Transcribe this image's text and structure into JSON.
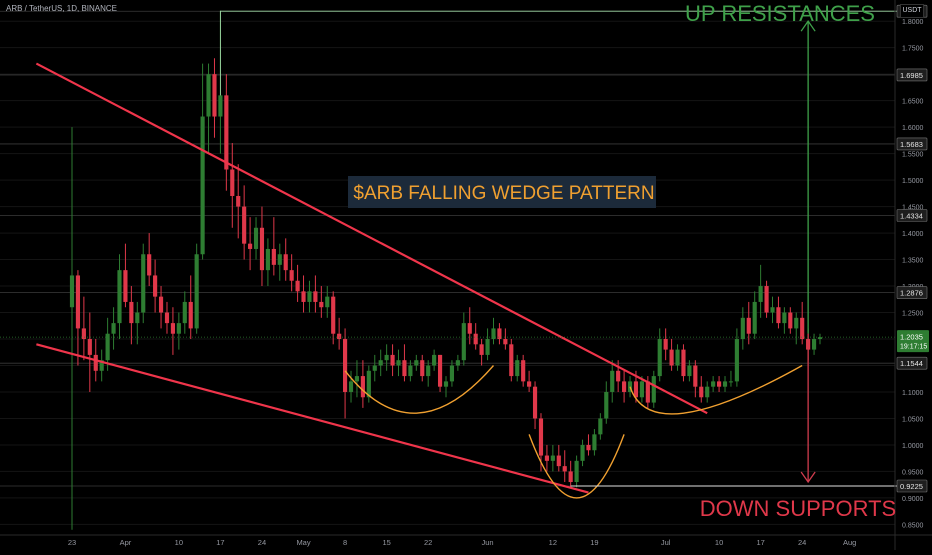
{
  "header": {
    "symbol_line": "ARB / TetherUS, 1D, BINANCE",
    "quote_currency": "USDT"
  },
  "colors": {
    "background": "#000000",
    "up_candle": "#2e7d32",
    "down_candle": "#e0384a",
    "trendline": "#f0354b",
    "arc": "#f0a030",
    "up_arrow": "#3fa14a",
    "down_arrow": "#d03c4e",
    "up_text": "#3fa14a",
    "down_text": "#e0384a",
    "title_text": "#f0a030",
    "title_bg": "#1c2a3a",
    "current_price_bg": "#2e7d32"
  },
  "annotations": {
    "title": "$ARB FALLING WEDGE PATTERN",
    "up_label": "UP RESISTANCES",
    "down_label": "DOWN SUPPORTS"
  },
  "chart_data": {
    "type": "candlestick",
    "y_axis": {
      "min": 0.83,
      "max": 1.84,
      "ticks": [
        "0.8500",
        "0.9000",
        "0.9500",
        "1.0000",
        "1.0500",
        "1.1000",
        "1.1500",
        "1.2000",
        "1.2500",
        "1.3000",
        "1.3500",
        "1.4000",
        "1.4500",
        "1.5000",
        "1.5500",
        "1.6000",
        "1.6500",
        "1.7000",
        "1.7500",
        "1.8000"
      ]
    },
    "x_axis": {
      "ticks": [
        {
          "label": "23",
          "x": "2023-03-23"
        },
        {
          "label": "Apr",
          "x": "2023-04-01"
        },
        {
          "label": "10",
          "x": "2023-04-10"
        },
        {
          "label": "17",
          "x": "2023-04-17"
        },
        {
          "label": "24",
          "x": "2023-04-24"
        },
        {
          "label": "May",
          "x": "2023-05-01"
        },
        {
          "label": "8",
          "x": "2023-05-08"
        },
        {
          "label": "15",
          "x": "2023-05-15"
        },
        {
          "label": "22",
          "x": "2023-05-22"
        },
        {
          "label": "Jun",
          "x": "2023-06-01"
        },
        {
          "label": "12",
          "x": "2023-06-12"
        },
        {
          "label": "19",
          "x": "2023-06-19"
        },
        {
          "label": "Jul",
          "x": "2023-07-01"
        },
        {
          "label": "10",
          "x": "2023-07-10"
        },
        {
          "label": "17",
          "x": "2023-07-17"
        },
        {
          "label": "24",
          "x": "2023-07-24"
        },
        {
          "label": "Aug",
          "x": "2023-08-01"
        }
      ]
    },
    "price_levels": [
      {
        "label": "1.8188",
        "value": 1.8188
      },
      {
        "label": "1.6985",
        "value": 1.6985
      },
      {
        "label": "1.5683",
        "value": 1.5683
      },
      {
        "label": "1.4334",
        "value": 1.4334
      },
      {
        "label": "1.2876",
        "value": 1.2876
      },
      {
        "label": "1.1544",
        "value": 1.1544
      },
      {
        "label": "0.9225",
        "value": 0.9225
      }
    ],
    "current_price": {
      "value": 1.2035,
      "label": "1.2035",
      "countdown": "19:17:15"
    },
    "candles": [
      [
        "2023-03-23",
        1.26,
        1.6,
        0.84,
        1.32
      ],
      [
        "2023-03-24",
        1.32,
        1.33,
        1.15,
        1.22
      ],
      [
        "2023-03-25",
        1.22,
        1.28,
        1.16,
        1.2
      ],
      [
        "2023-03-26",
        1.2,
        1.25,
        1.1,
        1.17
      ],
      [
        "2023-03-27",
        1.17,
        1.2,
        1.12,
        1.14
      ],
      [
        "2023-03-28",
        1.14,
        1.18,
        1.12,
        1.16
      ],
      [
        "2023-03-29",
        1.16,
        1.24,
        1.14,
        1.21
      ],
      [
        "2023-03-30",
        1.21,
        1.26,
        1.18,
        1.23
      ],
      [
        "2023-03-31",
        1.23,
        1.36,
        1.2,
        1.33
      ],
      [
        "2023-04-01",
        1.33,
        1.38,
        1.26,
        1.27
      ],
      [
        "2023-04-02",
        1.27,
        1.3,
        1.19,
        1.23
      ],
      [
        "2023-04-03",
        1.23,
        1.27,
        1.19,
        1.25
      ],
      [
        "2023-04-04",
        1.25,
        1.38,
        1.23,
        1.36
      ],
      [
        "2023-04-05",
        1.36,
        1.4,
        1.3,
        1.32
      ],
      [
        "2023-04-06",
        1.32,
        1.35,
        1.25,
        1.28
      ],
      [
        "2023-04-07",
        1.28,
        1.3,
        1.22,
        1.25
      ],
      [
        "2023-04-08",
        1.25,
        1.27,
        1.21,
        1.23
      ],
      [
        "2023-04-09",
        1.23,
        1.26,
        1.17,
        1.21
      ],
      [
        "2023-04-10",
        1.21,
        1.25,
        1.18,
        1.23
      ],
      [
        "2023-04-11",
        1.23,
        1.29,
        1.21,
        1.27
      ],
      [
        "2023-04-12",
        1.27,
        1.32,
        1.2,
        1.22
      ],
      [
        "2023-04-13",
        1.22,
        1.38,
        1.21,
        1.36
      ],
      [
        "2023-04-14",
        1.36,
        1.72,
        1.35,
        1.62
      ],
      [
        "2023-04-15",
        1.62,
        1.72,
        1.55,
        1.7
      ],
      [
        "2023-04-16",
        1.7,
        1.73,
        1.58,
        1.62
      ],
      [
        "2023-04-17",
        1.62,
        1.82,
        1.55,
        1.66
      ],
      [
        "2023-04-18",
        1.66,
        1.7,
        1.48,
        1.52
      ],
      [
        "2023-04-19",
        1.52,
        1.57,
        1.41,
        1.47
      ],
      [
        "2023-04-20",
        1.47,
        1.53,
        1.39,
        1.45
      ],
      [
        "2023-04-21",
        1.45,
        1.49,
        1.35,
        1.38
      ],
      [
        "2023-04-22",
        1.38,
        1.43,
        1.33,
        1.37
      ],
      [
        "2023-04-23",
        1.37,
        1.43,
        1.35,
        1.41
      ],
      [
        "2023-04-24",
        1.41,
        1.45,
        1.3,
        1.33
      ],
      [
        "2023-04-25",
        1.33,
        1.39,
        1.3,
        1.37
      ],
      [
        "2023-04-26",
        1.37,
        1.43,
        1.32,
        1.34
      ],
      [
        "2023-04-27",
        1.34,
        1.38,
        1.31,
        1.36
      ],
      [
        "2023-04-28",
        1.36,
        1.39,
        1.31,
        1.33
      ],
      [
        "2023-04-29",
        1.33,
        1.36,
        1.29,
        1.31
      ],
      [
        "2023-04-30",
        1.31,
        1.34,
        1.27,
        1.29
      ],
      [
        "2023-05-01",
        1.29,
        1.32,
        1.25,
        1.27
      ],
      [
        "2023-05-02",
        1.27,
        1.31,
        1.25,
        1.29
      ],
      [
        "2023-05-03",
        1.29,
        1.32,
        1.25,
        1.27
      ],
      [
        "2023-05-04",
        1.27,
        1.3,
        1.24,
        1.26
      ],
      [
        "2023-05-05",
        1.26,
        1.3,
        1.24,
        1.28
      ],
      [
        "2023-05-06",
        1.28,
        1.29,
        1.19,
        1.21
      ],
      [
        "2023-05-07",
        1.21,
        1.24,
        1.18,
        1.2
      ],
      [
        "2023-05-08",
        1.2,
        1.22,
        1.05,
        1.1
      ],
      [
        "2023-05-09",
        1.1,
        1.14,
        1.08,
        1.12
      ],
      [
        "2023-05-10",
        1.12,
        1.16,
        1.09,
        1.13
      ],
      [
        "2023-05-11",
        1.13,
        1.16,
        1.07,
        1.09
      ],
      [
        "2023-05-12",
        1.09,
        1.15,
        1.08,
        1.14
      ],
      [
        "2023-05-13",
        1.14,
        1.17,
        1.12,
        1.15
      ],
      [
        "2023-05-14",
        1.15,
        1.18,
        1.13,
        1.16
      ],
      [
        "2023-05-15",
        1.16,
        1.19,
        1.14,
        1.17
      ],
      [
        "2023-05-16",
        1.17,
        1.19,
        1.13,
        1.15
      ],
      [
        "2023-05-17",
        1.15,
        1.18,
        1.13,
        1.16
      ],
      [
        "2023-05-18",
        1.16,
        1.19,
        1.12,
        1.13
      ],
      [
        "2023-05-19",
        1.13,
        1.16,
        1.12,
        1.15
      ],
      [
        "2023-05-20",
        1.15,
        1.17,
        1.14,
        1.16
      ],
      [
        "2023-05-21",
        1.16,
        1.17,
        1.12,
        1.13
      ],
      [
        "2023-05-22",
        1.13,
        1.16,
        1.11,
        1.15
      ],
      [
        "2023-05-23",
        1.15,
        1.18,
        1.14,
        1.17
      ],
      [
        "2023-05-24",
        1.17,
        1.17,
        1.1,
        1.11
      ],
      [
        "2023-05-25",
        1.11,
        1.13,
        1.09,
        1.12
      ],
      [
        "2023-05-26",
        1.12,
        1.16,
        1.11,
        1.15
      ],
      [
        "2023-05-27",
        1.15,
        1.17,
        1.14,
        1.16
      ],
      [
        "2023-05-28",
        1.16,
        1.25,
        1.15,
        1.23
      ],
      [
        "2023-05-29",
        1.23,
        1.26,
        1.19,
        1.21
      ],
      [
        "2023-05-30",
        1.21,
        1.23,
        1.18,
        1.19
      ],
      [
        "2023-05-31",
        1.19,
        1.2,
        1.15,
        1.17
      ],
      [
        "2023-06-01",
        1.17,
        1.22,
        1.16,
        1.2
      ],
      [
        "2023-06-02",
        1.2,
        1.24,
        1.19,
        1.22
      ],
      [
        "2023-06-03",
        1.22,
        1.23,
        1.19,
        1.2
      ],
      [
        "2023-06-04",
        1.2,
        1.22,
        1.18,
        1.19
      ],
      [
        "2023-06-05",
        1.19,
        1.2,
        1.12,
        1.13
      ],
      [
        "2023-06-06",
        1.13,
        1.17,
        1.12,
        1.16
      ],
      [
        "2023-06-07",
        1.16,
        1.17,
        1.11,
        1.12
      ],
      [
        "2023-06-08",
        1.12,
        1.14,
        1.1,
        1.11
      ],
      [
        "2023-06-09",
        1.11,
        1.12,
        1.03,
        1.05
      ],
      [
        "2023-06-10",
        1.05,
        1.06,
        0.95,
        0.98
      ],
      [
        "2023-06-11",
        0.98,
        1.0,
        0.95,
        0.97
      ],
      [
        "2023-06-12",
        0.97,
        1.0,
        0.95,
        0.98
      ],
      [
        "2023-06-13",
        0.98,
        1.0,
        0.95,
        0.96
      ],
      [
        "2023-06-14",
        0.96,
        0.99,
        0.93,
        0.95
      ],
      [
        "2023-06-15",
        0.95,
        0.97,
        0.92,
        0.93
      ],
      [
        "2023-06-16",
        0.93,
        0.98,
        0.92,
        0.97
      ],
      [
        "2023-06-17",
        0.97,
        1.01,
        0.96,
        1.0
      ],
      [
        "2023-06-18",
        1.0,
        1.02,
        0.98,
        0.99
      ],
      [
        "2023-06-19",
        0.99,
        1.03,
        0.98,
        1.02
      ],
      [
        "2023-06-20",
        1.02,
        1.06,
        1.01,
        1.05
      ],
      [
        "2023-06-21",
        1.05,
        1.12,
        1.04,
        1.1
      ],
      [
        "2023-06-22",
        1.1,
        1.16,
        1.08,
        1.14
      ],
      [
        "2023-06-23",
        1.14,
        1.16,
        1.1,
        1.12
      ],
      [
        "2023-06-24",
        1.12,
        1.14,
        1.08,
        1.1
      ],
      [
        "2023-06-25",
        1.1,
        1.13,
        1.09,
        1.12
      ],
      [
        "2023-06-26",
        1.12,
        1.14,
        1.08,
        1.09
      ],
      [
        "2023-06-27",
        1.09,
        1.13,
        1.08,
        1.12
      ],
      [
        "2023-06-28",
        1.12,
        1.13,
        1.07,
        1.08
      ],
      [
        "2023-06-29",
        1.08,
        1.14,
        1.07,
        1.13
      ],
      [
        "2023-06-30",
        1.13,
        1.22,
        1.12,
        1.2
      ],
      [
        "2023-07-01",
        1.2,
        1.22,
        1.16,
        1.18
      ],
      [
        "2023-07-02",
        1.18,
        1.2,
        1.14,
        1.15
      ],
      [
        "2023-07-03",
        1.15,
        1.19,
        1.14,
        1.18
      ],
      [
        "2023-07-04",
        1.18,
        1.19,
        1.12,
        1.13
      ],
      [
        "2023-07-05",
        1.13,
        1.16,
        1.12,
        1.15
      ],
      [
        "2023-07-06",
        1.15,
        1.16,
        1.09,
        1.11
      ],
      [
        "2023-07-07",
        1.11,
        1.13,
        1.08,
        1.09
      ],
      [
        "2023-07-08",
        1.09,
        1.12,
        1.08,
        1.11
      ],
      [
        "2023-07-09",
        1.11,
        1.13,
        1.1,
        1.12
      ],
      [
        "2023-07-10",
        1.12,
        1.13,
        1.1,
        1.11
      ],
      [
        "2023-07-11",
        1.11,
        1.13,
        1.1,
        1.12
      ],
      [
        "2023-07-12",
        1.12,
        1.14,
        1.11,
        1.12
      ],
      [
        "2023-07-13",
        1.12,
        1.22,
        1.11,
        1.2
      ],
      [
        "2023-07-14",
        1.2,
        1.26,
        1.18,
        1.24
      ],
      [
        "2023-07-15",
        1.24,
        1.27,
        1.19,
        1.21
      ],
      [
        "2023-07-16",
        1.21,
        1.29,
        1.2,
        1.27
      ],
      [
        "2023-07-17",
        1.27,
        1.34,
        1.24,
        1.3
      ],
      [
        "2023-07-18",
        1.3,
        1.31,
        1.24,
        1.25
      ],
      [
        "2023-07-19",
        1.25,
        1.28,
        1.23,
        1.26
      ],
      [
        "2023-07-20",
        1.26,
        1.28,
        1.22,
        1.23
      ],
      [
        "2023-07-21",
        1.23,
        1.26,
        1.21,
        1.25
      ],
      [
        "2023-07-22",
        1.25,
        1.26,
        1.21,
        1.22
      ],
      [
        "2023-07-23",
        1.22,
        1.25,
        1.19,
        1.24
      ],
      [
        "2023-07-24",
        1.24,
        1.27,
        1.19,
        1.2
      ],
      [
        "2023-07-25",
        1.2,
        1.22,
        1.16,
        1.18
      ],
      [
        "2023-07-26",
        1.18,
        1.21,
        1.17,
        1.2
      ],
      [
        "2023-07-27",
        1.2,
        1.21,
        1.19,
        1.2035
      ]
    ],
    "trendlines": [
      {
        "name": "upper",
        "from": [
          "2023-03-17",
          1.72
        ],
        "to": [
          "2023-07-08",
          1.06
        ]
      },
      {
        "name": "lower",
        "from": [
          "2023-03-17",
          1.19
        ],
        "to": [
          "2023-06-18",
          0.91
        ]
      }
    ],
    "arcs": [
      {
        "from": [
          "2023-05-08",
          1.14
        ],
        "bottom": [
          "2023-05-20",
          1.06
        ],
        "to": [
          "2023-06-02",
          1.15
        ]
      },
      {
        "from": [
          "2023-06-08",
          1.02
        ],
        "bottom": [
          "2023-06-16",
          0.9
        ],
        "to": [
          "2023-06-24",
          1.02
        ]
      },
      {
        "from": [
          "2023-06-25",
          1.11
        ],
        "bottom": [
          "2023-07-04",
          1.06
        ],
        "to": [
          "2023-07-24",
          1.15
        ]
      }
    ],
    "arrows": [
      {
        "name": "up",
        "x": "2023-07-25",
        "from": 1.21,
        "to": 1.8
      },
      {
        "name": "down",
        "x": "2023-07-25",
        "from": 1.21,
        "to": 0.93
      }
    ],
    "bracket": {
      "from": [
        "2023-04-17",
        1.66
      ],
      "top": 1.8188,
      "to_date": "2023-08-12"
    },
    "support_line": {
      "from_date": "2023-06-15",
      "to_date": "2023-08-12",
      "value": 0.9225
    }
  }
}
